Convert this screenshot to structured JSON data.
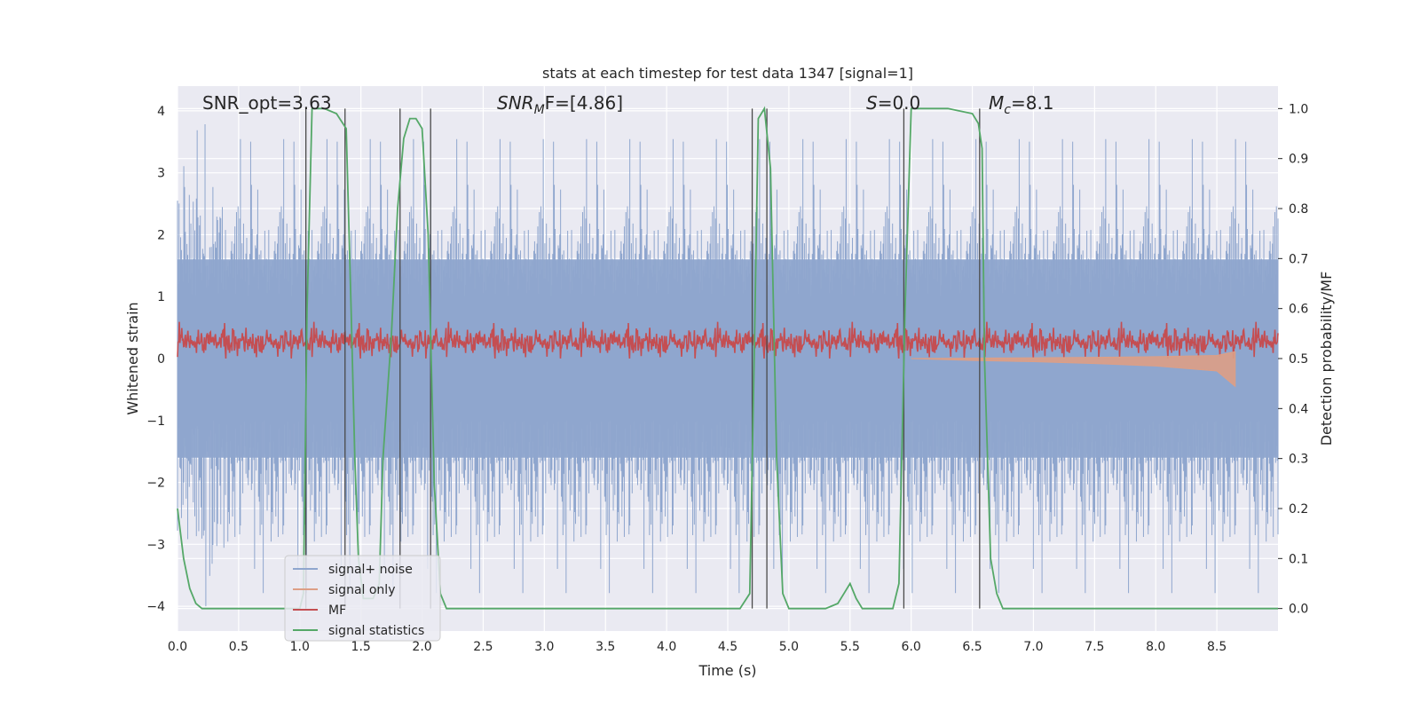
{
  "chart_data": {
    "type": "line",
    "title": "stats at each timestep for test data 1347 [signal=1]",
    "xlabel": "Time (s)",
    "ylabel_left": "Whitened strain",
    "ylabel_right": "Detection probability/MF",
    "xlim": [
      0.0,
      9.0
    ],
    "ylim_left": [
      -4.4,
      4.4
    ],
    "ylim_right": [
      -0.045,
      1.045
    ],
    "x_ticks": [
      "0.0",
      "0.5",
      "1.0",
      "1.5",
      "2.0",
      "2.5",
      "3.0",
      "3.5",
      "4.0",
      "4.5",
      "5.0",
      "5.5",
      "6.0",
      "6.5",
      "7.0",
      "7.5",
      "8.0",
      "8.5"
    ],
    "y_ticks_left": [
      "−4",
      "−3",
      "−2",
      "−1",
      "0",
      "1",
      "2",
      "3",
      "4"
    ],
    "y_ticks_right": [
      "0.0",
      "0.1",
      "0.2",
      "0.3",
      "0.4",
      "0.5",
      "0.6",
      "0.7",
      "0.8",
      "0.9",
      "1.0"
    ],
    "grid": true,
    "legend_position": "lower-left",
    "annotations": {
      "snr_opt": "SNR_opt=3.63",
      "snr_mf": "SNR",
      "snr_mf_sub": "M",
      "snr_mf_rest": "F=[4.86]",
      "s_label": "S",
      "s_value": "=0.0",
      "mc_label": "M",
      "mc_sub": "c",
      "mc_value": "=8.1"
    },
    "series": [
      {
        "name": "signal+ noise",
        "color": "#8fa6ce",
        "axis": "left",
        "description_values": {
          "band_min": -4.0,
          "band_max": 4.0,
          "dense_band": [
            -1.6,
            1.6
          ]
        }
      },
      {
        "name": "signal only",
        "color": "#dd9f86",
        "axis": "left",
        "x": [
          6.0,
          6.5,
          7.0,
          7.5,
          8.0,
          8.5,
          8.65
        ],
        "values": [
          0.0,
          -0.03,
          -0.05,
          -0.08,
          -0.12,
          -0.2,
          -0.45
        ]
      },
      {
        "name": "MF",
        "color": "#c44e52",
        "axis": "left",
        "description_values": {
          "band_min": 0.0,
          "band_max": 0.85
        }
      },
      {
        "name": "signal statistics",
        "color": "#55a868",
        "axis": "right",
        "x": [
          0.0,
          0.05,
          0.1,
          0.15,
          0.2,
          0.3,
          0.4,
          0.5,
          0.6,
          0.7,
          0.8,
          0.9,
          1.0,
          1.03,
          1.06,
          1.1,
          1.15,
          1.2,
          1.3,
          1.38,
          1.42,
          1.45,
          1.48,
          1.52,
          1.6,
          1.65,
          1.68,
          1.75,
          1.8,
          1.85,
          1.9,
          1.95,
          2.0,
          2.05,
          2.1,
          2.15,
          2.2,
          2.3,
          2.5,
          3.0,
          3.5,
          4.0,
          4.5,
          4.6,
          4.68,
          4.72,
          4.75,
          4.8,
          4.85,
          4.9,
          4.95,
          5.0,
          5.05,
          5.1,
          5.2,
          5.3,
          5.4,
          5.45,
          5.5,
          5.55,
          5.6,
          5.7,
          5.8,
          5.85,
          5.9,
          5.95,
          6.0,
          6.1,
          6.3,
          6.5,
          6.55,
          6.58,
          6.6,
          6.65,
          6.7,
          6.75,
          7.0,
          7.5,
          8.0,
          8.5,
          9.0
        ],
        "values": [
          0.2,
          0.1,
          0.04,
          0.01,
          0.0,
          0.0,
          0.0,
          0.0,
          0.0,
          0.0,
          0.0,
          0.0,
          0.0,
          0.03,
          0.6,
          1.0,
          1.0,
          1.0,
          0.99,
          0.96,
          0.6,
          0.3,
          0.1,
          0.02,
          0.02,
          0.05,
          0.3,
          0.55,
          0.8,
          0.94,
          0.98,
          0.98,
          0.96,
          0.75,
          0.25,
          0.03,
          0.0,
          0.0,
          0.0,
          0.0,
          0.0,
          0.0,
          0.0,
          0.0,
          0.03,
          0.55,
          0.98,
          1.0,
          0.88,
          0.3,
          0.03,
          0.0,
          0.0,
          0.0,
          0.0,
          0.0,
          0.01,
          0.03,
          0.05,
          0.02,
          0.0,
          0.0,
          0.0,
          0.0,
          0.05,
          0.6,
          1.0,
          1.0,
          1.0,
          0.99,
          0.97,
          0.92,
          0.5,
          0.1,
          0.03,
          0.0,
          0.0,
          0.0,
          0.0,
          0.0,
          0.0
        ]
      },
      {
        "name": "",
        "color": "#4a4a4a",
        "axis": "right",
        "type": "vlines",
        "x": [
          1.05,
          1.37,
          1.82,
          2.07,
          4.7,
          4.82,
          5.94,
          6.56
        ]
      }
    ]
  },
  "legend": [
    {
      "label": "signal+ noise",
      "color": "#8fa6ce"
    },
    {
      "label": "signal only",
      "color": "#dd9f86"
    },
    {
      "label": "MF",
      "color": "#c44e52"
    },
    {
      "label": "signal statistics",
      "color": "#55a868"
    }
  ]
}
